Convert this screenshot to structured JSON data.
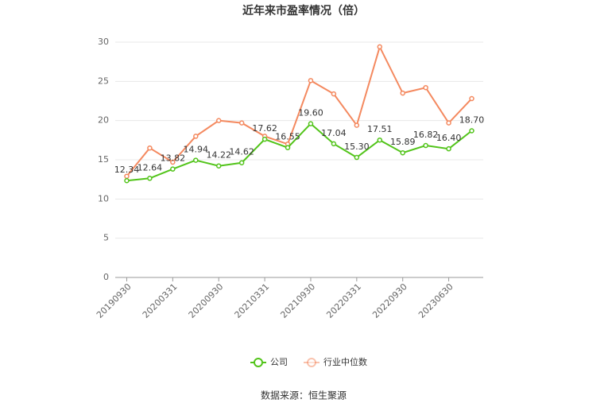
{
  "chart_data": {
    "type": "line",
    "title": "近年来市盈率情况（倍）",
    "categories": [
      "20190930",
      null,
      "20200331",
      null,
      "20200930",
      null,
      "20210331",
      null,
      "20210930",
      null,
      "20220331",
      null,
      "20220930",
      null,
      "20230630",
      null
    ],
    "series": [
      {
        "name": "公司",
        "color": "#52c41a",
        "values": [
          12.34,
          12.64,
          13.82,
          14.94,
          14.22,
          14.62,
          17.62,
          16.55,
          19.6,
          17.04,
          15.3,
          17.51,
          15.89,
          16.82,
          16.4,
          18.7
        ],
        "value_labels": [
          "12.34",
          "12.64",
          "13.82",
          "14.94",
          "14.22",
          "14.62",
          "17.62",
          "16.55",
          "19.60",
          "17.04",
          "15.30",
          "17.51",
          "15.89",
          "16.82",
          "16.40",
          "18.70"
        ]
      },
      {
        "name": "行业中位数",
        "color": "#f4895f",
        "values": [
          12.9,
          16.5,
          14.7,
          18.0,
          20.0,
          19.7,
          18.0,
          17.0,
          25.1,
          23.4,
          19.4,
          29.4,
          23.5,
          24.2,
          19.7,
          22.8
        ]
      }
    ],
    "ylim": [
      0,
      30
    ],
    "yticks": [
      0,
      5,
      10,
      15,
      20,
      25,
      30
    ],
    "grid": true,
    "legend": "bottom",
    "source": "数据来源：恒生聚源"
  }
}
